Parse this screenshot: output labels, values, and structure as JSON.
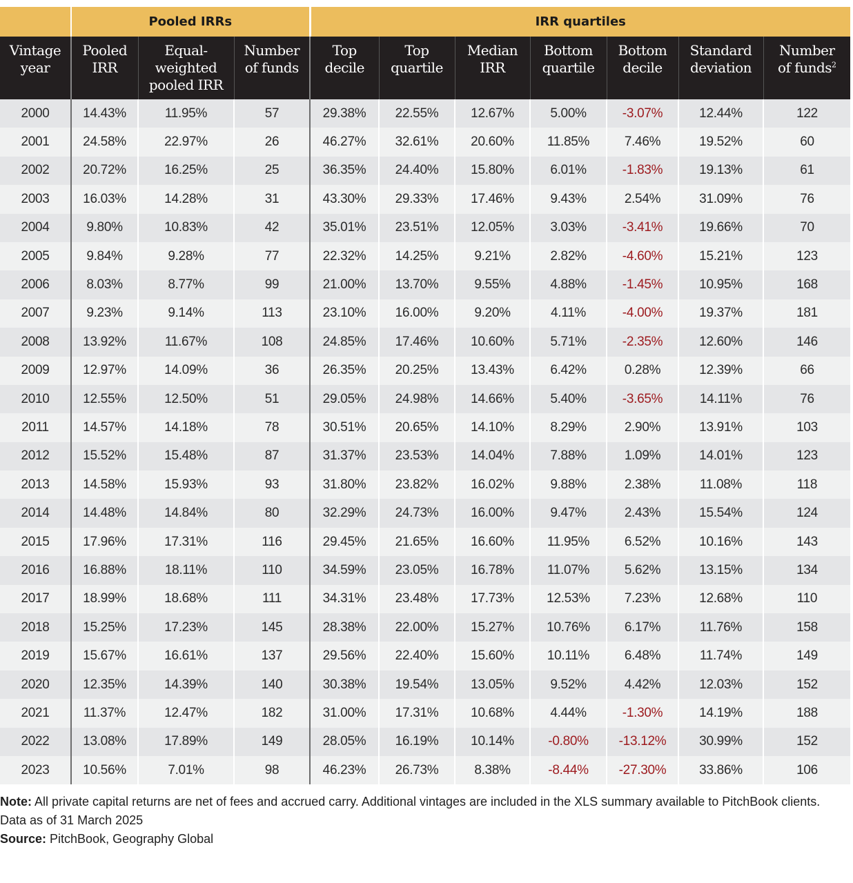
{
  "chart_data": {
    "type": "table",
    "groups": [
      {
        "label": "",
        "span": 1
      },
      {
        "label": "Pooled IRRs",
        "span": 3
      },
      {
        "label": "IRR quartiles",
        "span": 7
      }
    ],
    "columns": [
      {
        "line1": "Vintage",
        "line2": "year",
        "line3": ""
      },
      {
        "line1": "Pooled",
        "line2": "IRR",
        "line3": ""
      },
      {
        "line1": "Equal-",
        "line2": "weighted",
        "line3": "pooled IRR"
      },
      {
        "line1": "Number",
        "line2": "of funds",
        "line3": ""
      },
      {
        "line1": "Top",
        "line2": "decile",
        "line3": ""
      },
      {
        "line1": "Top",
        "line2": "quartile",
        "line3": ""
      },
      {
        "line1": "Median",
        "line2": "IRR",
        "line3": ""
      },
      {
        "line1": "Bottom",
        "line2": "quartile",
        "line3": ""
      },
      {
        "line1": "Bottom",
        "line2": "decile",
        "line3": ""
      },
      {
        "line1": "Standard",
        "line2": "deviation",
        "line3": ""
      },
      {
        "line1": "Number",
        "line2": "of funds",
        "line3": "",
        "footnote": "2"
      }
    ],
    "rows": [
      [
        "2000",
        "14.43%",
        "11.95%",
        "57",
        "29.38%",
        "22.55%",
        "12.67%",
        "5.00%",
        "-3.07%",
        "12.44%",
        "122"
      ],
      [
        "2001",
        "24.58%",
        "22.97%",
        "26",
        "46.27%",
        "32.61%",
        "20.60%",
        "11.85%",
        "7.46%",
        "19.52%",
        "60"
      ],
      [
        "2002",
        "20.72%",
        "16.25%",
        "25",
        "36.35%",
        "24.40%",
        "15.80%",
        "6.01%",
        "-1.83%",
        "19.13%",
        "61"
      ],
      [
        "2003",
        "16.03%",
        "14.28%",
        "31",
        "43.30%",
        "29.33%",
        "17.46%",
        "9.43%",
        "2.54%",
        "31.09%",
        "76"
      ],
      [
        "2004",
        "9.80%",
        "10.83%",
        "42",
        "35.01%",
        "23.51%",
        "12.05%",
        "3.03%",
        "-3.41%",
        "19.66%",
        "70"
      ],
      [
        "2005",
        "9.84%",
        "9.28%",
        "77",
        "22.32%",
        "14.25%",
        "9.21%",
        "2.82%",
        "-4.60%",
        "15.21%",
        "123"
      ],
      [
        "2006",
        "8.03%",
        "8.77%",
        "99",
        "21.00%",
        "13.70%",
        "9.55%",
        "4.88%",
        "-1.45%",
        "10.95%",
        "168"
      ],
      [
        "2007",
        "9.23%",
        "9.14%",
        "113",
        "23.10%",
        "16.00%",
        "9.20%",
        "4.11%",
        "-4.00%",
        "19.37%",
        "181"
      ],
      [
        "2008",
        "13.92%",
        "11.67%",
        "108",
        "24.85%",
        "17.46%",
        "10.60%",
        "5.71%",
        "-2.35%",
        "12.60%",
        "146"
      ],
      [
        "2009",
        "12.97%",
        "14.09%",
        "36",
        "26.35%",
        "20.25%",
        "13.43%",
        "6.42%",
        "0.28%",
        "12.39%",
        "66"
      ],
      [
        "2010",
        "12.55%",
        "12.50%",
        "51",
        "29.05%",
        "24.98%",
        "14.66%",
        "5.40%",
        "-3.65%",
        "14.11%",
        "76"
      ],
      [
        "2011",
        "14.57%",
        "14.18%",
        "78",
        "30.51%",
        "20.65%",
        "14.10%",
        "8.29%",
        "2.90%",
        "13.91%",
        "103"
      ],
      [
        "2012",
        "15.52%",
        "15.48%",
        "87",
        "31.37%",
        "23.53%",
        "14.04%",
        "7.88%",
        "1.09%",
        "14.01%",
        "123"
      ],
      [
        "2013",
        "14.58%",
        "15.93%",
        "93",
        "31.80%",
        "23.82%",
        "16.02%",
        "9.88%",
        "2.38%",
        "11.08%",
        "118"
      ],
      [
        "2014",
        "14.48%",
        "14.84%",
        "80",
        "32.29%",
        "24.73%",
        "16.00%",
        "9.47%",
        "2.43%",
        "15.54%",
        "124"
      ],
      [
        "2015",
        "17.96%",
        "17.31%",
        "116",
        "29.45%",
        "21.65%",
        "16.60%",
        "11.95%",
        "6.52%",
        "10.16%",
        "143"
      ],
      [
        "2016",
        "16.88%",
        "18.11%",
        "110",
        "34.59%",
        "23.05%",
        "16.78%",
        "11.07%",
        "5.62%",
        "13.15%",
        "134"
      ],
      [
        "2017",
        "18.99%",
        "18.68%",
        "111",
        "34.31%",
        "23.48%",
        "17.73%",
        "12.53%",
        "7.23%",
        "12.68%",
        "110"
      ],
      [
        "2018",
        "15.25%",
        "17.23%",
        "145",
        "28.38%",
        "22.00%",
        "15.27%",
        "10.76%",
        "6.17%",
        "11.76%",
        "158"
      ],
      [
        "2019",
        "15.67%",
        "16.61%",
        "137",
        "29.56%",
        "22.40%",
        "15.60%",
        "10.11%",
        "6.48%",
        "11.74%",
        "149"
      ],
      [
        "2020",
        "12.35%",
        "14.39%",
        "140",
        "30.38%",
        "19.54%",
        "13.05%",
        "9.52%",
        "4.42%",
        "12.03%",
        "152"
      ],
      [
        "2021",
        "11.37%",
        "12.47%",
        "182",
        "31.00%",
        "17.31%",
        "10.68%",
        "4.44%",
        "-1.30%",
        "14.19%",
        "188"
      ],
      [
        "2022",
        "13.08%",
        "17.89%",
        "149",
        "28.05%",
        "16.19%",
        "10.14%",
        "-0.80%",
        "-13.12%",
        "30.99%",
        "152"
      ],
      [
        "2023",
        "10.56%",
        "7.01%",
        "98",
        "46.23%",
        "26.73%",
        "8.38%",
        "-8.44%",
        "-27.30%",
        "33.86%",
        "106"
      ]
    ]
  },
  "colors": {
    "group_header_bg": "#ecbd5d",
    "column_header_bg": "#231f20",
    "negative_text": "#9d1b1f",
    "row_odd_bg": "#e4e5e7",
    "row_even_bg": "#f0f1f1"
  },
  "notes": {
    "note_label": "Note:",
    "note_text": " All private capital returns are net of fees and accrued carry. Additional vintages are included in the XLS summary available to PitchBook clients.",
    "data_as_of": "Data as of 31 March 2025",
    "source_label": "Source:",
    "source_text": " PitchBook, Geography Global"
  }
}
